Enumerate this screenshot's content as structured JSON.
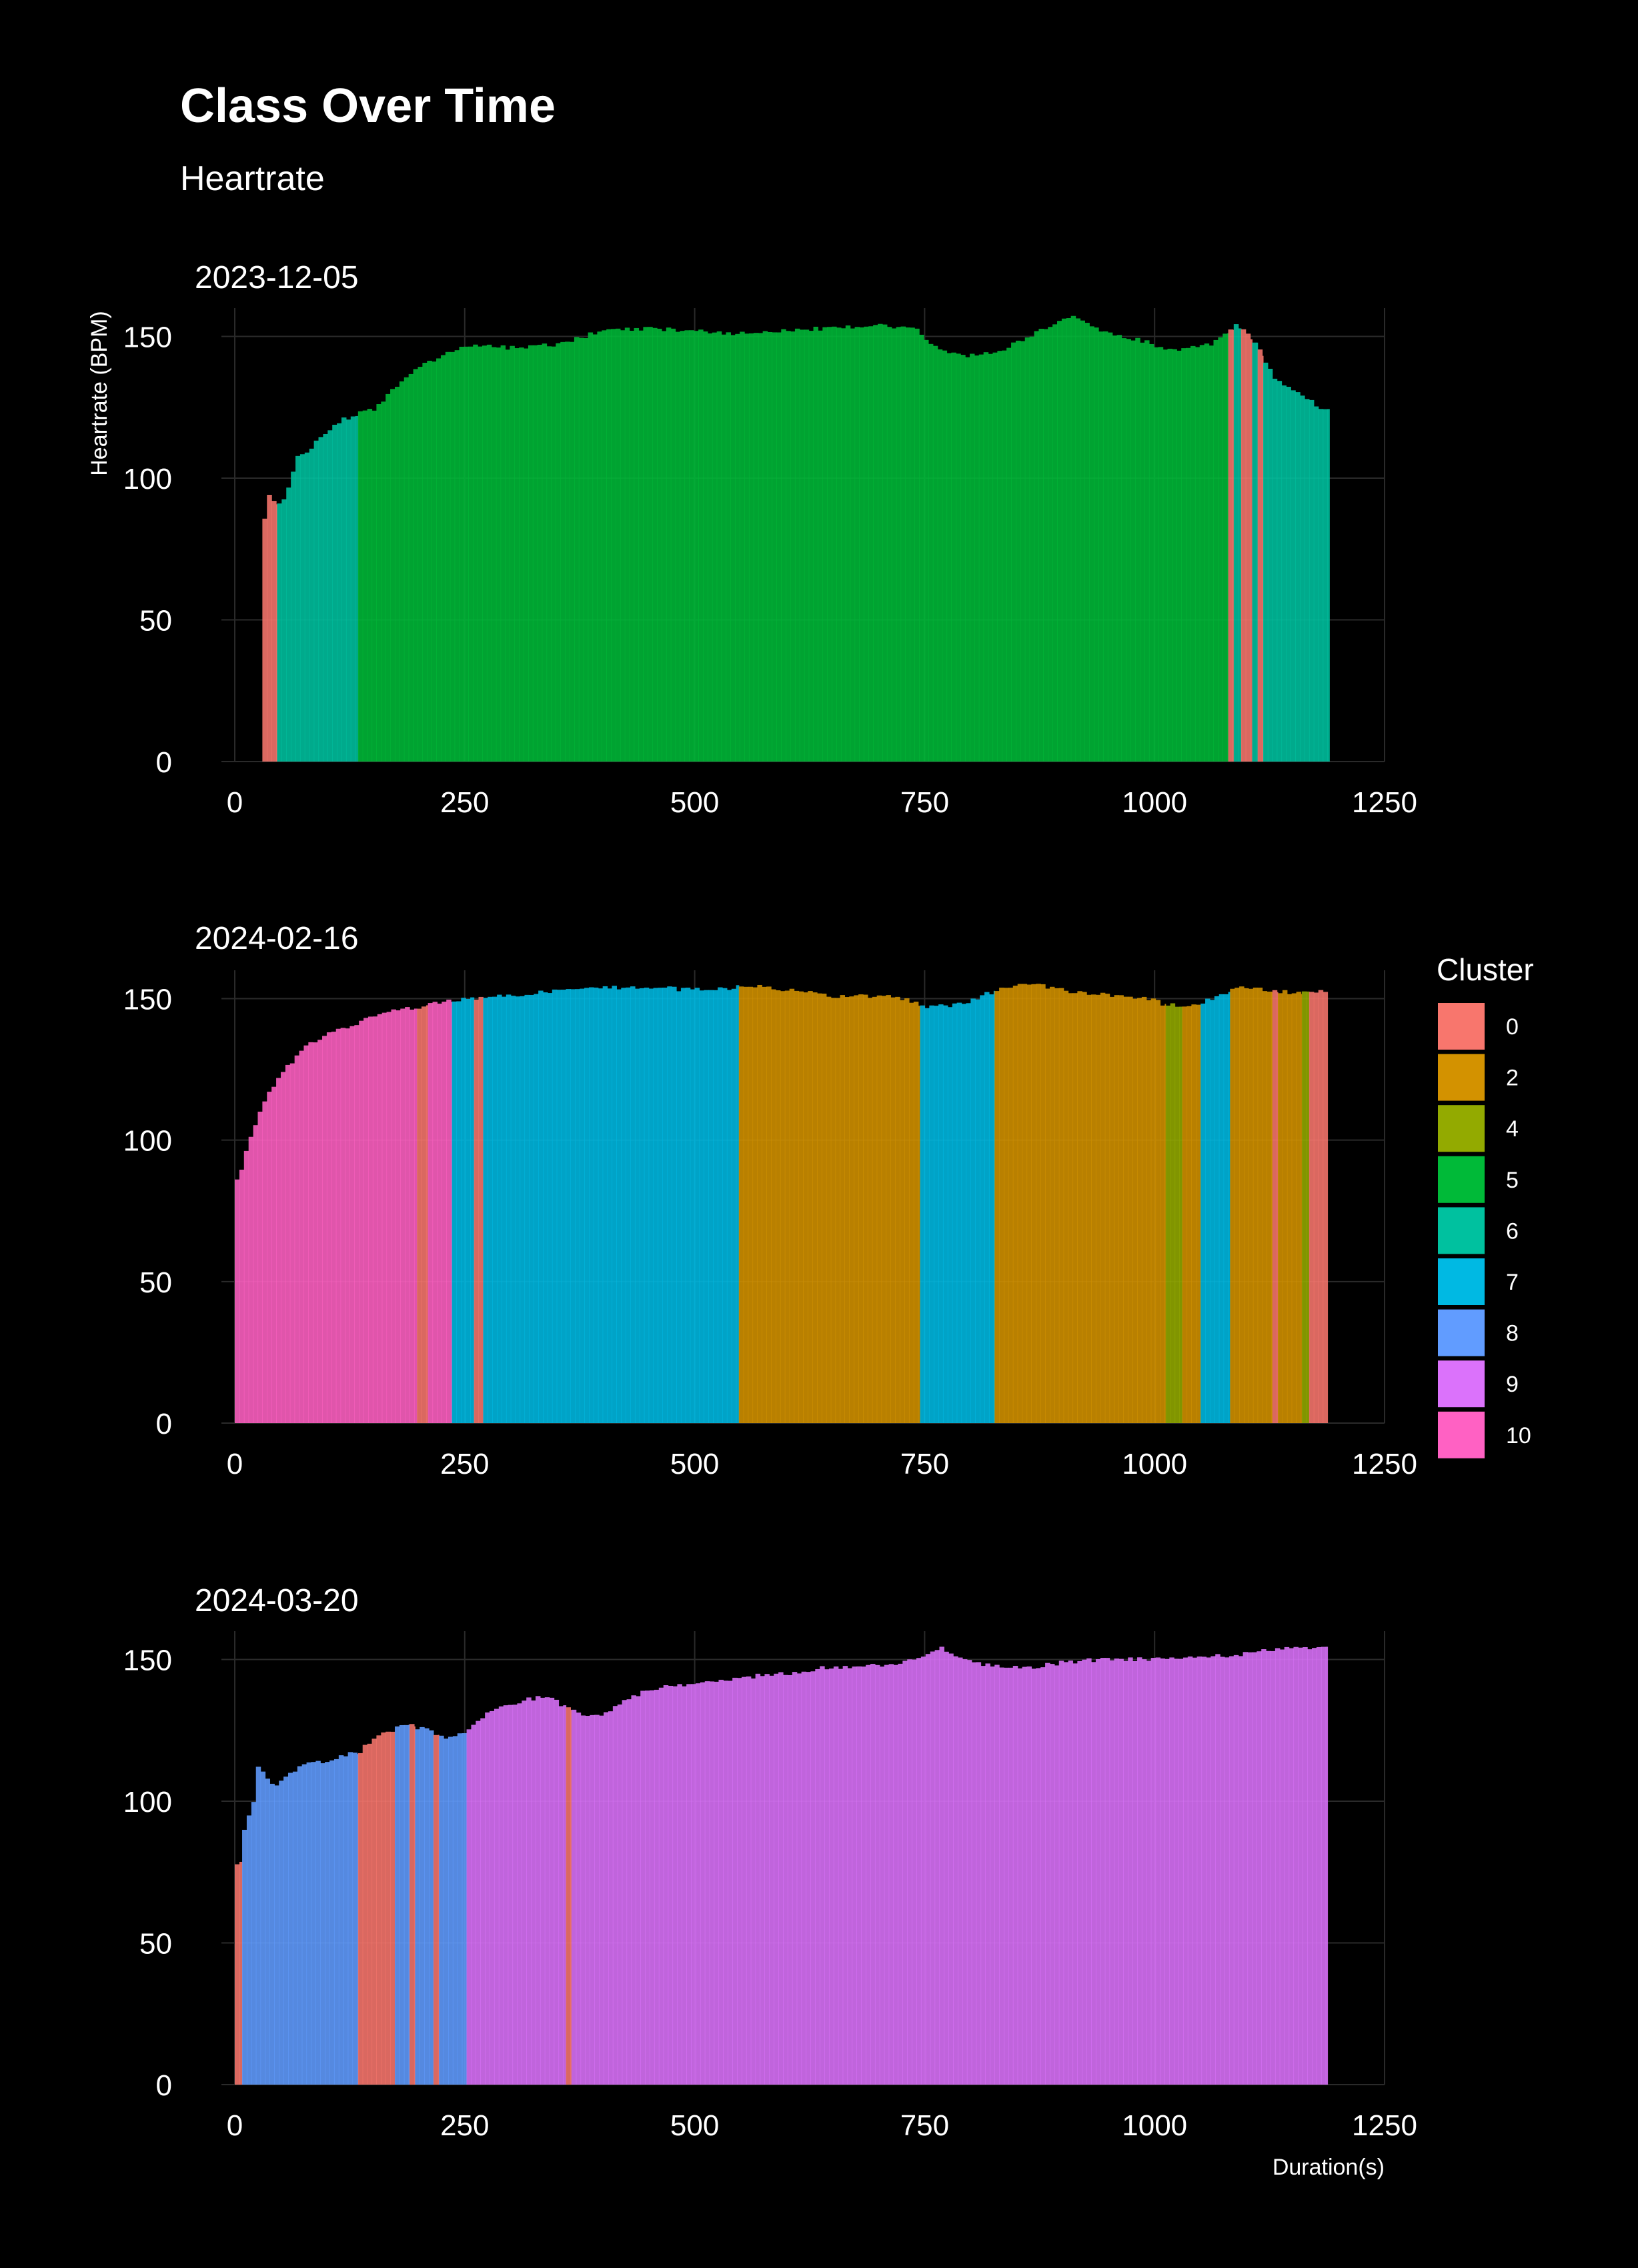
{
  "title": "Class Over Time",
  "subtitle": "Heartrate",
  "chart_data": {
    "type": "bar",
    "xlabel": "Duration(s)",
    "ylabel": "Heartrate (BPM)",
    "xlim": [
      0,
      1250
    ],
    "ylim": [
      0,
      160
    ],
    "xticks": [
      0,
      250,
      500,
      750,
      1000,
      1250
    ],
    "yticks": [
      0,
      50,
      100,
      150
    ],
    "grid": true,
    "legend": {
      "title": "Cluster",
      "placement": "right",
      "entries": [
        {
          "label": "0",
          "color": "#F8766D"
        },
        {
          "label": "2",
          "color": "#D39200"
        },
        {
          "label": "4",
          "color": "#93AA00"
        },
        {
          "label": "5",
          "color": "#00BA38"
        },
        {
          "label": "6",
          "color": "#00C19F"
        },
        {
          "label": "7",
          "color": "#00B9E3"
        },
        {
          "label": "8",
          "color": "#619CFF"
        },
        {
          "label": "9",
          "color": "#DB72FB"
        },
        {
          "label": "10",
          "color": "#FF61C3"
        }
      ]
    },
    "panels": [
      {
        "title": "2023-12-05",
        "x_end": 1190,
        "profile": [
          [
            32,
            85
          ],
          [
            38,
            95
          ],
          [
            45,
            91
          ],
          [
            55,
            93
          ],
          [
            60,
            99
          ],
          [
            68,
            108
          ],
          [
            80,
            110
          ],
          [
            100,
            116
          ],
          [
            120,
            121
          ],
          [
            135,
            123
          ],
          [
            150,
            124
          ],
          [
            175,
            132
          ],
          [
            200,
            139
          ],
          [
            230,
            144
          ],
          [
            260,
            147
          ],
          [
            300,
            146
          ],
          [
            350,
            147
          ],
          [
            400,
            152
          ],
          [
            450,
            153
          ],
          [
            500,
            152
          ],
          [
            550,
            151
          ],
          [
            600,
            152
          ],
          [
            650,
            153
          ],
          [
            700,
            154
          ],
          [
            740,
            153
          ],
          [
            760,
            146
          ],
          [
            800,
            143
          ],
          [
            840,
            146
          ],
          [
            880,
            153
          ],
          [
            910,
            157
          ],
          [
            940,
            152
          ],
          [
            980,
            149
          ],
          [
            1020,
            145
          ],
          [
            1060,
            147
          ],
          [
            1090,
            154
          ],
          [
            1110,
            148
          ],
          [
            1130,
            135
          ],
          [
            1160,
            129
          ],
          [
            1180,
            125
          ],
          [
            1190,
            125
          ]
        ],
        "segments": [
          {
            "start": 30,
            "end": 46,
            "cluster": "0"
          },
          {
            "start": 46,
            "end": 134,
            "cluster": "6"
          },
          {
            "start": 134,
            "end": 1080,
            "cluster": "5"
          },
          {
            "start": 1080,
            "end": 1086,
            "cluster": "0"
          },
          {
            "start": 1086,
            "end": 1094,
            "cluster": "6"
          },
          {
            "start": 1094,
            "end": 1106,
            "cluster": "0"
          },
          {
            "start": 1106,
            "end": 1112,
            "cluster": "6"
          },
          {
            "start": 1112,
            "end": 1118,
            "cluster": "0"
          },
          {
            "start": 1118,
            "end": 1190,
            "cluster": "6"
          }
        ]
      },
      {
        "title": "2024-02-16",
        "x_end": 1188,
        "profile": [
          [
            0,
            84
          ],
          [
            6,
            88
          ],
          [
            12,
            96
          ],
          [
            20,
            104
          ],
          [
            30,
            112
          ],
          [
            45,
            121
          ],
          [
            60,
            127
          ],
          [
            80,
            134
          ],
          [
            100,
            137
          ],
          [
            120,
            140
          ],
          [
            140,
            142
          ],
          [
            160,
            145
          ],
          [
            180,
            146
          ],
          [
            200,
            147
          ],
          [
            230,
            149
          ],
          [
            260,
            150
          ],
          [
            300,
            151
          ],
          [
            350,
            153
          ],
          [
            400,
            154
          ],
          [
            450,
            154
          ],
          [
            500,
            153
          ],
          [
            545,
            154
          ],
          [
            550,
            155
          ],
          [
            600,
            153
          ],
          [
            650,
            151
          ],
          [
            700,
            151
          ],
          [
            740,
            149
          ],
          [
            750,
            147
          ],
          [
            790,
            148
          ],
          [
            820,
            152
          ],
          [
            850,
            155
          ],
          [
            870,
            155
          ],
          [
            900,
            153
          ],
          [
            950,
            151
          ],
          [
            1000,
            150
          ],
          [
            1010,
            148
          ],
          [
            1040,
            147
          ],
          [
            1070,
            151
          ],
          [
            1090,
            154
          ],
          [
            1120,
            153
          ],
          [
            1150,
            152
          ],
          [
            1188,
            153
          ]
        ],
        "segments": [
          {
            "start": 0,
            "end": 198,
            "cluster": "10"
          },
          {
            "start": 198,
            "end": 210,
            "cluster": "0"
          },
          {
            "start": 210,
            "end": 236,
            "cluster": "10"
          },
          {
            "start": 236,
            "end": 260,
            "cluster": "7"
          },
          {
            "start": 260,
            "end": 270,
            "cluster": "0"
          },
          {
            "start": 270,
            "end": 548,
            "cluster": "7"
          },
          {
            "start": 548,
            "end": 745,
            "cluster": "2"
          },
          {
            "start": 745,
            "end": 826,
            "cluster": "7"
          },
          {
            "start": 826,
            "end": 1012,
            "cluster": "2"
          },
          {
            "start": 1012,
            "end": 1030,
            "cluster": "4"
          },
          {
            "start": 1030,
            "end": 1050,
            "cluster": "2"
          },
          {
            "start": 1050,
            "end": 1082,
            "cluster": "7"
          },
          {
            "start": 1082,
            "end": 1128,
            "cluster": "2"
          },
          {
            "start": 1128,
            "end": 1134,
            "cluster": "0"
          },
          {
            "start": 1134,
            "end": 1160,
            "cluster": "2"
          },
          {
            "start": 1160,
            "end": 1168,
            "cluster": "4"
          },
          {
            "start": 1168,
            "end": 1188,
            "cluster": "0"
          }
        ]
      },
      {
        "title": "2024-03-20",
        "x_end": 1188,
        "profile": [
          [
            0,
            77
          ],
          [
            8,
            78
          ],
          [
            10,
            90
          ],
          [
            20,
            98
          ],
          [
            25,
            112
          ],
          [
            35,
            108
          ],
          [
            45,
            105
          ],
          [
            60,
            110
          ],
          [
            80,
            114
          ],
          [
            100,
            114
          ],
          [
            115,
            116
          ],
          [
            135,
            117
          ],
          [
            150,
            122
          ],
          [
            170,
            125
          ],
          [
            190,
            127
          ],
          [
            210,
            125
          ],
          [
            230,
            122
          ],
          [
            250,
            124
          ],
          [
            270,
            130
          ],
          [
            290,
            133
          ],
          [
            320,
            136
          ],
          [
            340,
            137
          ],
          [
            360,
            133
          ],
          [
            380,
            130
          ],
          [
            400,
            131
          ],
          [
            440,
            138
          ],
          [
            480,
            141
          ],
          [
            520,
            142
          ],
          [
            560,
            144
          ],
          [
            600,
            145
          ],
          [
            640,
            147
          ],
          [
            680,
            148
          ],
          [
            720,
            148
          ],
          [
            750,
            151
          ],
          [
            770,
            154
          ],
          [
            790,
            150
          ],
          [
            820,
            148
          ],
          [
            860,
            147
          ],
          [
            900,
            149
          ],
          [
            940,
            150
          ],
          [
            980,
            150
          ],
          [
            1020,
            150
          ],
          [
            1060,
            151
          ],
          [
            1100,
            152
          ],
          [
            1140,
            154
          ],
          [
            1188,
            154
          ]
        ],
        "segments": [
          {
            "start": 0,
            "end": 8,
            "cluster": "0"
          },
          {
            "start": 8,
            "end": 134,
            "cluster": "8"
          },
          {
            "start": 134,
            "end": 174,
            "cluster": "0"
          },
          {
            "start": 174,
            "end": 190,
            "cluster": "8"
          },
          {
            "start": 190,
            "end": 196,
            "cluster": "0"
          },
          {
            "start": 196,
            "end": 216,
            "cluster": "8"
          },
          {
            "start": 216,
            "end": 222,
            "cluster": "0"
          },
          {
            "start": 222,
            "end": 252,
            "cluster": "8"
          },
          {
            "start": 252,
            "end": 360,
            "cluster": "9"
          },
          {
            "start": 360,
            "end": 366,
            "cluster": "0"
          },
          {
            "start": 366,
            "end": 1188,
            "cluster": "9"
          }
        ]
      }
    ]
  }
}
